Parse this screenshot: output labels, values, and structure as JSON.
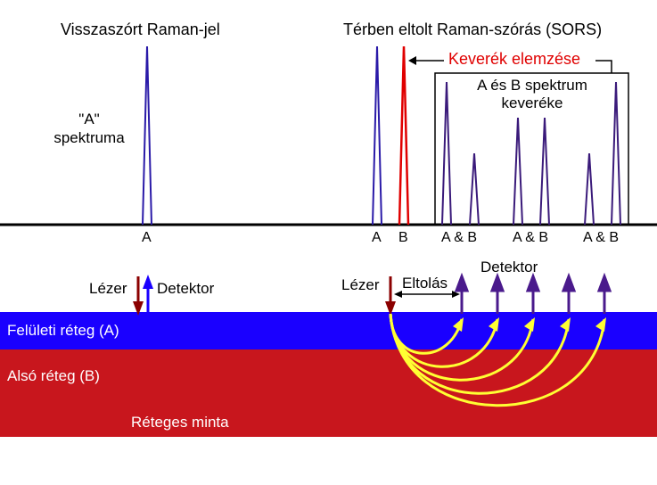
{
  "titles": {
    "left": "Visszaszórt Raman-jel",
    "right": "Térben eltolt Raman-szórás (SORS)"
  },
  "labels": {
    "mixture_analysis": "Keverék elemzése",
    "mixture_box_line1": "A és B spektrum",
    "mixture_box_line2": "keveréke",
    "spectrum_a_line1": "\"A\"",
    "spectrum_a_line2": "spektruma",
    "peak_a": "A",
    "peak_a2": "A",
    "peak_b": "B",
    "peak_ab": [
      "A & B",
      "A & B",
      "A & B"
    ],
    "laser_left": "Lézer",
    "detector_left": "Detektor",
    "laser_right": "Lézer",
    "offset": "Eltolás",
    "detector_right": "Detektor",
    "surface_layer": "Felületi réteg (A)",
    "lower_layer": "Alsó réteg (B)",
    "sample": "Réteges minta"
  },
  "colors": {
    "peak_blue": "#2a1aa8",
    "peak_red": "#e00000",
    "peak_purple": "#3a1a7a",
    "surface_layer": "#1a00ff",
    "lower_layer": "#c8161d",
    "arcs": "#ffff33",
    "arrow_purple": "#4a1a8c",
    "laser_arrow": "#8b0000"
  }
}
